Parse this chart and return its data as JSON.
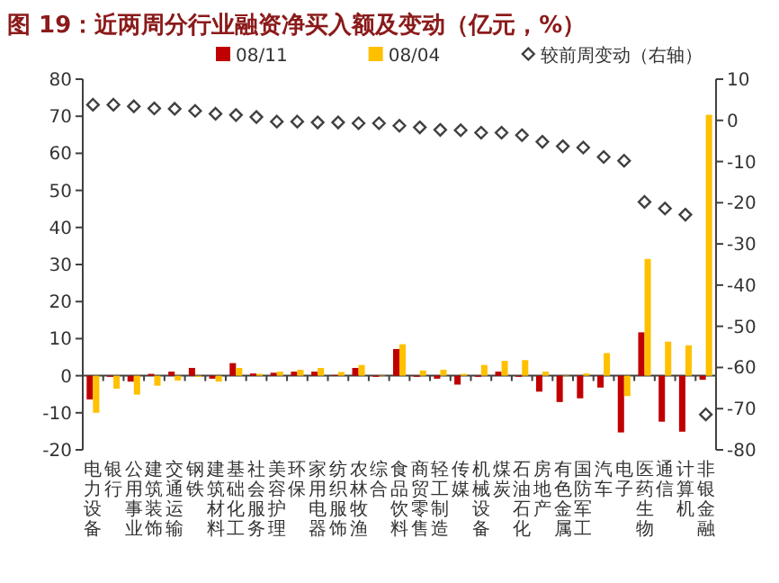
{
  "chart_data": {
    "type": "bar",
    "title": "图 19：近两周分行业融资净买入额及变动（亿元，%）",
    "categories": [
      "电力设备",
      "银行",
      "公用事业",
      "建筑装饰",
      "交通运输",
      "钢铁",
      "建筑材料",
      "基础化工",
      "社会服务",
      "美容护理",
      "环保",
      "家用电器",
      "纺织服饰",
      "农林牧渔",
      "综合",
      "食品饮料",
      "商贸零售",
      "轻工制造",
      "传媒",
      "机械设备",
      "煤炭",
      "石油石化",
      "房地产",
      "有色金属",
      "国防军工",
      "汽车",
      "电子",
      "医药生物",
      "通信",
      "计算机",
      "非银金融"
    ],
    "series": [
      {
        "name": "08/11",
        "color": "#c00000",
        "values": [
          -6.4,
          -0.3,
          -1.6,
          0.5,
          1.1,
          2.1,
          -0.8,
          3.4,
          0.6,
          0.8,
          1.1,
          1.1,
          0.2,
          2.1,
          -0.3,
          7.2,
          -0.3,
          -0.8,
          -2.4,
          -0.3,
          1.1,
          -0.3,
          -4.3,
          -7.1,
          -6.1,
          -3.2,
          -15.3,
          11.7,
          -12.4,
          -15.1,
          -1.1
        ]
      },
      {
        "name": "08/04",
        "color": "#ffc000",
        "values": [
          -10,
          -3.5,
          -5.1,
          -2.7,
          -1.3,
          -0.3,
          -1.6,
          2.1,
          0.5,
          1.1,
          1.6,
          2.1,
          1.0,
          2.9,
          0,
          8.5,
          1.4,
          1.6,
          0.5,
          2.9,
          4.0,
          4.2,
          1.1,
          0,
          0.6,
          6.1,
          -5.5,
          31.5,
          9.2,
          8.2,
          70.4
        ]
      },
      {
        "name": "较前周变动（右轴）",
        "type": "scatter",
        "axis": "y2",
        "marker": "diamond",
        "color": "#404040",
        "values": [
          3.8,
          3.8,
          3.4,
          2.9,
          2.8,
          2.3,
          1.6,
          1.3,
          0.8,
          -0.3,
          -0.3,
          -0.5,
          -0.5,
          -0.7,
          -0.7,
          -1.3,
          -1.7,
          -2.3,
          -2.4,
          -3.0,
          -3.0,
          -3.6,
          -5.2,
          -6.3,
          -6.6,
          -8.9,
          -9.8,
          -19.8,
          -21.4,
          -22.9,
          -71.4
        ]
      }
    ],
    "ylim": [
      -20,
      80
    ],
    "yticks": [
      -20,
      -10,
      0,
      10,
      20,
      30,
      40,
      50,
      60,
      70,
      80
    ],
    "y2lim": [
      -80,
      10
    ],
    "y2ticks": [
      -80,
      -70,
      -60,
      -50,
      -40,
      -30,
      -20,
      -10,
      0,
      10
    ],
    "legend": "top"
  }
}
